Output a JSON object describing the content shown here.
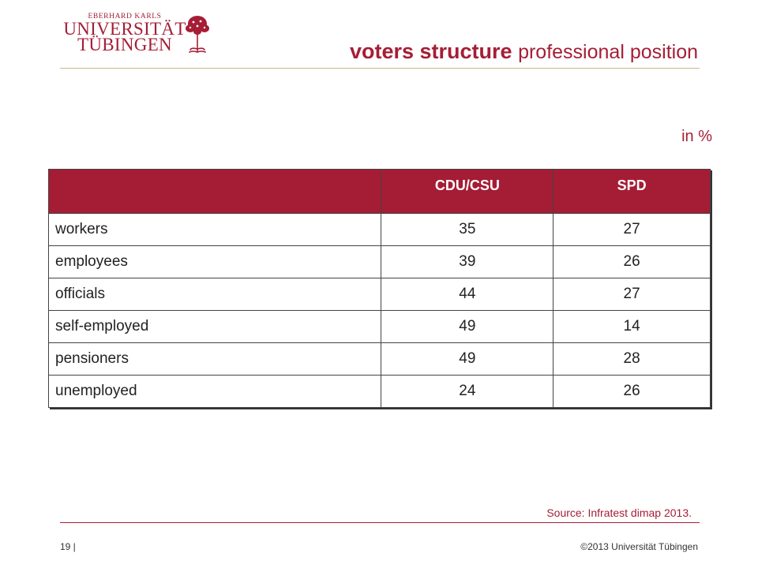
{
  "logo": {
    "line1": "EBERHARD KARLS",
    "line2": "UNIVERSITÄT",
    "line3": "TÜBINGEN",
    "brand_color": "#a51e36"
  },
  "title": {
    "bold": "voters structure",
    "light": "professional position"
  },
  "unit_label": "in %",
  "table": {
    "headers": [
      "",
      "CDU/CSU",
      "SPD"
    ],
    "rows": [
      [
        "workers",
        "35",
        "27"
      ],
      [
        "employees",
        "39",
        "26"
      ],
      [
        "officials",
        "44",
        "27"
      ],
      [
        "self-employed",
        "49",
        "14"
      ],
      [
        "pensioners",
        "49",
        "28"
      ],
      [
        "unemployed",
        "24",
        "26"
      ]
    ],
    "header_color": "#a51c35"
  },
  "source": "Source: Infratest dimap 2013.",
  "footer": {
    "page": "19 |",
    "copyright": "©2013 Universität Tübingen"
  }
}
